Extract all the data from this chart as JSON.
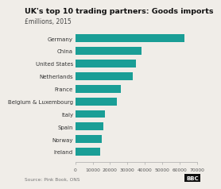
{
  "title": "UK's top 10 trading partners: Goods imports",
  "subtitle": "£millions, 2015",
  "source": "Source: Pink Book, ONS",
  "categories": [
    "Germany",
    "China",
    "United States",
    "Netherlands",
    "France",
    "Belgium & Luxembourg",
    "Italy",
    "Spain",
    "Norway",
    "Ireland"
  ],
  "values": [
    63000,
    38000,
    35000,
    33000,
    26000,
    24000,
    17000,
    16000,
    15000,
    14500
  ],
  "bar_color": "#1a9e96",
  "background_color": "#f0ede8",
  "xlim": [
    0,
    70000
  ],
  "xticks": [
    0,
    10000,
    20000,
    30000,
    40000,
    50000,
    60000,
    70000
  ],
  "xtick_labels": [
    "0",
    "10000",
    "20000",
    "30000",
    "40000",
    "50000",
    "60000",
    "70000"
  ],
  "title_fontsize": 6.8,
  "subtitle_fontsize": 5.5,
  "label_fontsize": 5.0,
  "tick_fontsize": 4.3,
  "source_fontsize": 4.2
}
